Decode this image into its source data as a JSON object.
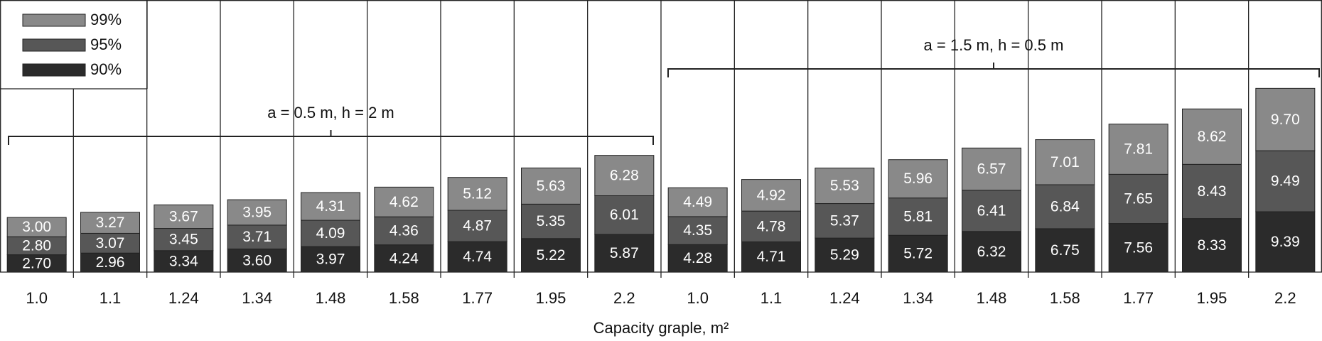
{
  "chart_data": {
    "type": "stacked_bar",
    "xlabel": "Capacity graple, m²",
    "categories": [
      "1.0",
      "1.1",
      "1.24",
      "1.34",
      "1.48",
      "1.58",
      "1.77",
      "1.95",
      "2.2",
      "1.0",
      "1.1",
      "1.24",
      "1.34",
      "1.48",
      "1.58",
      "1.77",
      "1.95",
      "2.2"
    ],
    "annotations": [
      "a = 0.5 m,  h = 2 m",
      "a = 1.5 m,  h = 0.5 m"
    ],
    "series": [
      {
        "name": "90%",
        "color": "#2b2b2b",
        "values": [
          2.7,
          2.96,
          3.34,
          3.6,
          3.97,
          4.24,
          4.74,
          5.22,
          5.87,
          4.28,
          4.71,
          5.29,
          5.72,
          6.32,
          6.75,
          7.56,
          8.33,
          9.39
        ],
        "value_labels": [
          "2.70",
          "2.96",
          "3.34",
          "3.60",
          "3.97",
          "4.24",
          "4.74",
          "5.22",
          "5.87",
          "4.28",
          "4.71",
          "5.29",
          "5.72",
          "6.32",
          "6.75",
          "7.56",
          "8.33",
          "9.39"
        ]
      },
      {
        "name": "95%",
        "color": "#575757",
        "values": [
          2.8,
          3.07,
          3.45,
          3.71,
          4.09,
          4.36,
          4.87,
          5.35,
          6.01,
          4.35,
          4.78,
          5.37,
          5.81,
          6.41,
          6.84,
          7.65,
          8.43,
          9.49
        ],
        "value_labels": [
          "2.80",
          "3.07",
          "3.45",
          "3.71",
          "4.09",
          "4.36",
          "4.87",
          "5.35",
          "6.01",
          "4.35",
          "4.78",
          "5.37",
          "5.81",
          "6.41",
          "6.84",
          "7.65",
          "8.43",
          "9.49"
        ]
      },
      {
        "name": "99%",
        "color": "#898989",
        "values": [
          3.0,
          3.27,
          3.67,
          3.95,
          4.31,
          4.62,
          5.12,
          5.63,
          6.28,
          4.49,
          4.92,
          5.53,
          5.96,
          6.57,
          7.01,
          7.81,
          8.62,
          9.7
        ],
        "value_labels": [
          "3.00",
          "3.27",
          "3.67",
          "3.95",
          "4.31",
          "4.62",
          "5.12",
          "5.63",
          "6.28",
          "4.49",
          "4.92",
          "5.53",
          "5.96",
          "6.57",
          "7.01",
          "7.81",
          "8.62",
          "9.70"
        ]
      }
    ]
  }
}
